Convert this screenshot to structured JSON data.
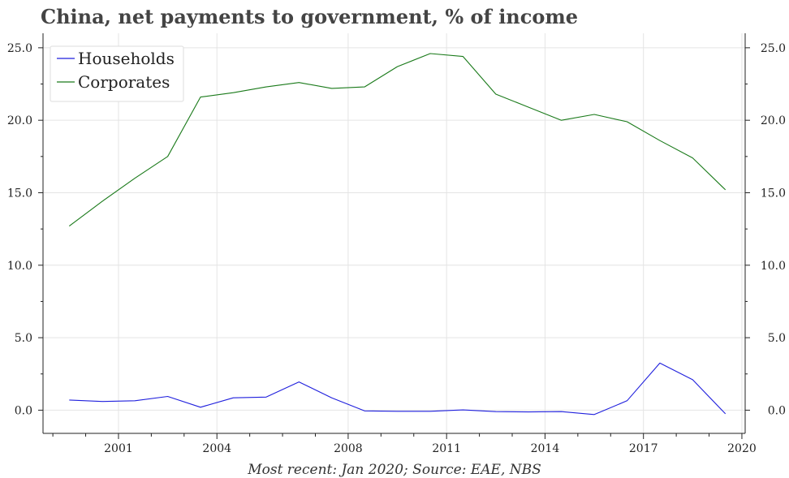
{
  "title": "China, net payments to government, % of income",
  "caption": "Most recent: Jan 2020; Source: EAE, NBS",
  "colors": {
    "households": "#1f1fdd",
    "corporates": "#1a7a1a",
    "grid": "#e4e4e4",
    "axis": "#222222"
  },
  "chart_data": {
    "type": "line",
    "title": "China, net payments to government, % of income",
    "xlabel": "",
    "ylabel": "",
    "xlim": [
      1998.7,
      2020.1
    ],
    "ylim": [
      -1.6,
      26.0
    ],
    "grid": true,
    "legend_position": "top-left",
    "x_ticks": [
      2001,
      2004,
      2008,
      2011,
      2014,
      2017,
      2020
    ],
    "x_tick_labels": [
      "2001",
      "2004",
      "2008",
      "2011",
      "2014",
      "2017",
      "2020"
    ],
    "y_ticks": [
      0,
      5,
      10,
      15,
      20,
      25
    ],
    "y_tick_labels": [
      "0.0",
      "5.0",
      "10.0",
      "15.0",
      "20.0",
      "25.0"
    ],
    "x": [
      1999.5,
      2000.5,
      2001.5,
      2002.5,
      2003.5,
      2004.5,
      2005.5,
      2006.5,
      2007.5,
      2008.5,
      2009.5,
      2010.5,
      2011.5,
      2012.5,
      2013.5,
      2014.5,
      2015.5,
      2016.5,
      2017.5,
      2018.5,
      2019.5
    ],
    "series": [
      {
        "name": "Households",
        "color": "#1f1fdd",
        "values": [
          0.7,
          0.6,
          0.65,
          0.95,
          0.2,
          0.85,
          0.9,
          1.95,
          0.85,
          -0.05,
          -0.08,
          -0.08,
          0.02,
          -0.1,
          -0.12,
          -0.1,
          -0.3,
          0.65,
          3.25,
          2.1,
          -0.25
        ]
      },
      {
        "name": "Corporates",
        "color": "#1a7a1a",
        "values": [
          12.7,
          14.4,
          16.0,
          17.5,
          21.6,
          21.9,
          22.3,
          22.6,
          22.2,
          22.3,
          23.7,
          24.6,
          24.4,
          21.8,
          20.9,
          20.0,
          20.4,
          19.9,
          18.6,
          17.4,
          15.2
        ]
      }
    ]
  }
}
